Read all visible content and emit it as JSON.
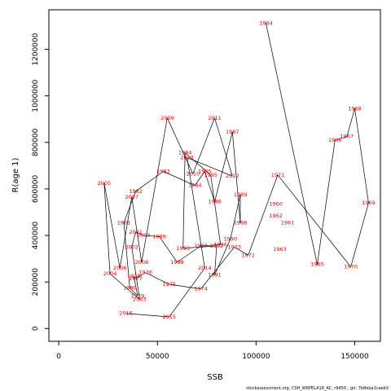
{
  "chart_data": {
    "type": "line",
    "title": "",
    "xlabel": "SSB",
    "ylabel": "R(age 1)",
    "xlim": [
      -5000,
      163000
    ],
    "ylim": [
      -55000,
      1370000
    ],
    "xticks": [
      0,
      50000,
      100000,
      150000
    ],
    "xtick_labels": [
      "0",
      "50000",
      "100000",
      "150000"
    ],
    "yticks": [
      0,
      200000,
      400000,
      600000,
      800000,
      1000000,
      1200000
    ],
    "ytick_labels": [
      "0",
      "200000",
      "400000",
      "600000",
      "800000",
      "1000000",
      "1200000"
    ],
    "grid": false,
    "line_color": "#000000",
    "label_color": "#e00000",
    "points": [
      {
        "year": "1964",
        "x": 105000,
        "y": 1312000
      },
      {
        "year": "1965",
        "x": 131000,
        "y": 275000
      },
      {
        "year": "1966",
        "x": 140000,
        "y": 810000
      },
      {
        "year": "1967",
        "x": 146000,
        "y": 825000
      },
      {
        "year": "1968",
        "x": 150000,
        "y": 945000
      },
      {
        "year": "1969",
        "x": 157000,
        "y": 540000
      },
      {
        "year": "1970",
        "x": 148000,
        "y": 265000
      },
      {
        "year": "1971",
        "x": 111000,
        "y": 660000
      },
      {
        "year": "1972",
        "x": 96000,
        "y": 315000
      },
      {
        "year": "1973",
        "x": 89000,
        "y": 350000
      },
      {
        "year": "1974",
        "x": 72000,
        "y": 170000
      },
      {
        "year": "1975",
        "x": 56000,
        "y": 190000
      },
      {
        "year": "1976",
        "x": 44000,
        "y": 240000
      },
      {
        "year": "1977",
        "x": 39000,
        "y": 215000
      },
      {
        "year": "1978",
        "x": 38000,
        "y": 225000
      },
      {
        "year": "1979",
        "x": 40000,
        "y": 140000
      },
      {
        "year": "1980",
        "x": 36000,
        "y": 175000
      },
      {
        "year": "1981",
        "x": 33000,
        "y": 455000
      },
      {
        "year": "1982",
        "x": 39000,
        "y": 590000
      },
      {
        "year": "1983",
        "x": 53000,
        "y": 675000
      },
      {
        "year": "1984",
        "x": 69000,
        "y": 615000
      },
      {
        "year": "1985",
        "x": 74000,
        "y": 675000
      },
      {
        "year": "1986",
        "x": 79000,
        "y": 545000
      },
      {
        "year": "1987",
        "x": 88000,
        "y": 845000
      },
      {
        "year": "1988",
        "x": 92000,
        "y": 455000
      },
      {
        "year": "1989",
        "x": 92000,
        "y": 575000
      },
      {
        "year": "1990",
        "x": 87000,
        "y": 385000
      },
      {
        "year": "1991",
        "x": 79000,
        "y": 230000
      },
      {
        "year": "1992",
        "x": 80000,
        "y": 355000
      },
      {
        "year": "1993",
        "x": 63000,
        "y": 345000
      },
      {
        "year": "1994",
        "x": 64000,
        "y": 755000
      },
      {
        "year": "1995",
        "x": 77000,
        "y": 660000
      },
      {
        "year": "1996",
        "x": 82000,
        "y": 360000
      },
      {
        "year": "1997",
        "x": 72000,
        "y": 355000
      },
      {
        "year": "1998",
        "x": 60000,
        "y": 285000
      },
      {
        "year": "1999",
        "x": 51000,
        "y": 395000
      },
      {
        "year": "2000",
        "x": 43000,
        "y": 400000
      },
      {
        "year": "2001",
        "x": 39000,
        "y": 415000
      },
      {
        "year": "2002",
        "x": 37000,
        "y": 350000
      },
      {
        "year": "2003",
        "x": 41000,
        "y": 125000
      },
      {
        "year": "2004",
        "x": 26000,
        "y": 235000
      },
      {
        "year": "2005",
        "x": 23000,
        "y": 625000
      },
      {
        "year": "2006",
        "x": 31000,
        "y": 260000
      },
      {
        "year": "2007",
        "x": 37000,
        "y": 565000
      },
      {
        "year": "2008",
        "x": 42000,
        "y": 285000
      },
      {
        "year": "2009",
        "x": 55000,
        "y": 905000
      },
      {
        "year": "2010",
        "x": 68000,
        "y": 665000
      },
      {
        "year": "2011",
        "x": 79000,
        "y": 905000
      },
      {
        "year": "2012",
        "x": 88000,
        "y": 655000
      },
      {
        "year": "2013",
        "x": 65000,
        "y": 735000
      },
      {
        "year": "2014",
        "x": 74000,
        "y": 260000
      },
      {
        "year": "2015",
        "x": 56000,
        "y": 50000
      },
      {
        "year": "2016",
        "x": 34000,
        "y": 65000
      }
    ],
    "extra_labels": [
      {
        "text": "1960",
        "x": 110000,
        "y": 535000
      },
      {
        "text": "1961",
        "x": 116000,
        "y": 455000
      },
      {
        "text": "1962",
        "x": 110000,
        "y": 485000
      },
      {
        "text": "1963",
        "x": 112000,
        "y": 340000
      }
    ]
  },
  "footer": "stockassessment.org, CSH_WKPELA18_AC, r9450 , git: 7b8eba1caeb3"
}
